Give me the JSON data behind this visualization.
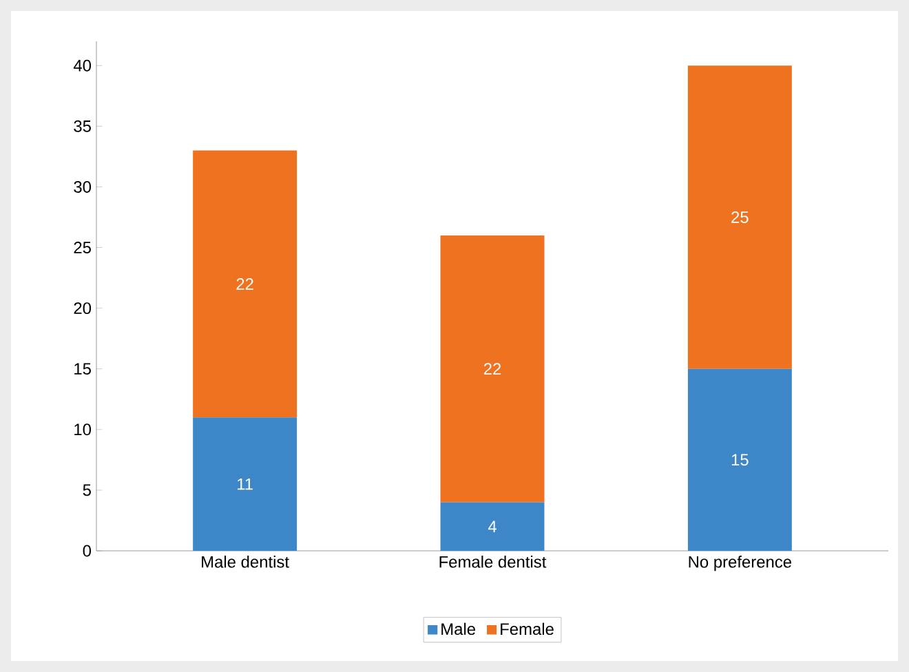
{
  "chart_data": {
    "type": "bar",
    "stacked": true,
    "categories": [
      "Male dentist",
      "Female dentist",
      "No preference"
    ],
    "series": [
      {
        "name": "Male",
        "color": "#3d86c8",
        "values": [
          11,
          4,
          15
        ]
      },
      {
        "name": "Female",
        "color": "#ee7220",
        "values": [
          22,
          22,
          25
        ]
      }
    ],
    "ylim": [
      0,
      42
    ],
    "yticks": [
      0,
      5,
      10,
      15,
      20,
      25,
      30,
      35,
      40
    ],
    "data_labels": true,
    "legend": "bottom",
    "grid": false
  }
}
